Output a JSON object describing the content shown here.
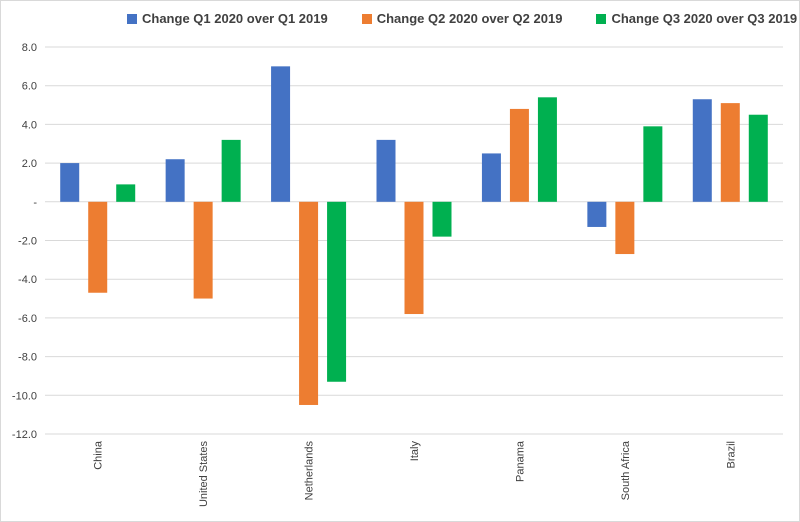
{
  "chart_data": {
    "type": "bar",
    "title": "",
    "xlabel": "",
    "ylabel": "",
    "ylim": [
      -12,
      8
    ],
    "y_ticks": [
      {
        "value": 8,
        "label": "8.0"
      },
      {
        "value": 6,
        "label": "6.0"
      },
      {
        "value": 4,
        "label": "4.0"
      },
      {
        "value": 2,
        "label": "2.0"
      },
      {
        "value": 0,
        "label": "-"
      },
      {
        "value": -2,
        "label": "-2.0"
      },
      {
        "value": -4,
        "label": "-4.0"
      },
      {
        "value": -6,
        "label": "-6.0"
      },
      {
        "value": -8,
        "label": "-8.0"
      },
      {
        "value": -10,
        "label": "-10.0"
      },
      {
        "value": -12,
        "label": "-12.0"
      }
    ],
    "grid": true,
    "legend_position": "top",
    "categories": [
      "China",
      "United States",
      "Netherlands",
      "Italy",
      "Panama",
      "South Africa",
      "Brazil"
    ],
    "series": [
      {
        "name": "Change Q1 2020 over Q1 2019",
        "color": "#4472c4",
        "values": [
          2.0,
          2.2,
          7.0,
          3.2,
          2.5,
          -1.3,
          5.3
        ]
      },
      {
        "name": "Change Q2 2020 over Q2 2019",
        "color": "#ed7d31",
        "values": [
          -4.7,
          -5.0,
          -10.5,
          -5.8,
          4.8,
          -2.7,
          5.1
        ]
      },
      {
        "name": "Change Q3 2020 over Q3 2019",
        "color": "#00b050",
        "values": [
          0.9,
          3.2,
          -9.3,
          -1.8,
          5.4,
          3.9,
          4.5
        ]
      }
    ]
  }
}
